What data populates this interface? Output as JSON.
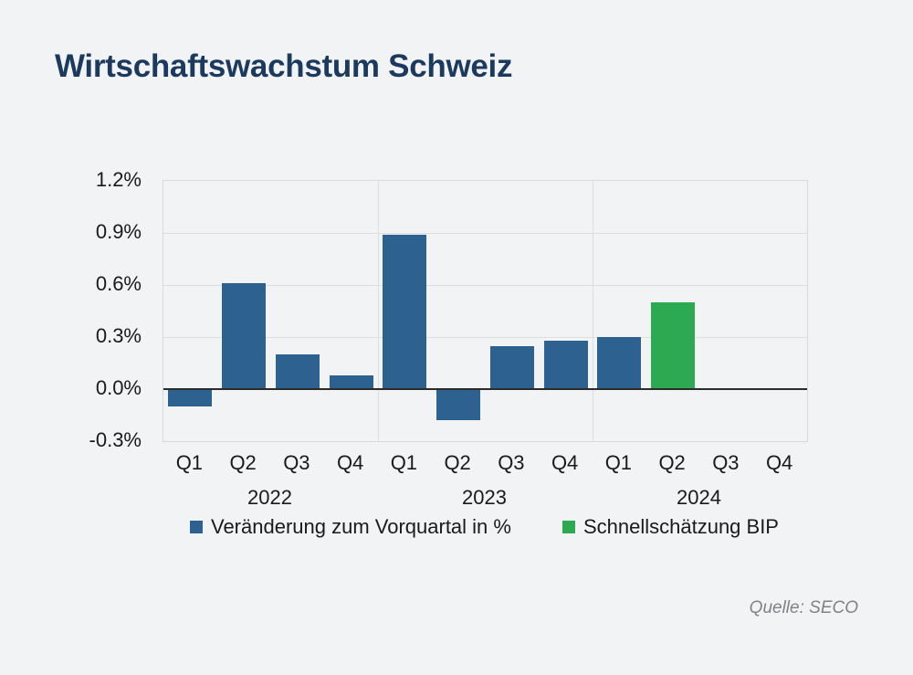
{
  "page": {
    "title": "Wirtschaftswachstum Schweiz",
    "source": "Quelle: SECO",
    "background_color": "#f2f3f5",
    "title_color": "#1b3a5e",
    "text_color": "#1a1a1a",
    "source_color": "#808285"
  },
  "chart_data": {
    "type": "bar",
    "title": "Wirtschaftswachstum Schweiz",
    "xlabel": "",
    "ylabel": "",
    "ylim": [
      -0.3,
      1.2
    ],
    "grid": true,
    "legend_position": "bottom",
    "y_ticks": [
      {
        "value": 1.2,
        "label": "1.2%"
      },
      {
        "value": 0.9,
        "label": "0.9%"
      },
      {
        "value": 0.6,
        "label": "0.6%"
      },
      {
        "value": 0.3,
        "label": "0.3%"
      },
      {
        "value": 0.0,
        "label": "0.0%"
      },
      {
        "value": -0.3,
        "label": "-0.3%"
      }
    ],
    "categories": [
      "Q1",
      "Q2",
      "Q3",
      "Q4",
      "Q1",
      "Q2",
      "Q3",
      "Q4",
      "Q1",
      "Q2",
      "Q3",
      "Q4"
    ],
    "year_groups": [
      {
        "label": "2022",
        "span": [
          0,
          3
        ]
      },
      {
        "label": "2023",
        "span": [
          4,
          7
        ]
      },
      {
        "label": "2024",
        "span": [
          8,
          11
        ]
      }
    ],
    "group_separator_indices": [
      4,
      8
    ],
    "series": [
      {
        "name": "Veränderung zum Vorquartal in %",
        "color": "#2d6190",
        "values": [
          -0.1,
          0.61,
          0.2,
          0.08,
          0.89,
          -0.18,
          0.25,
          0.28,
          0.3,
          null,
          null,
          null
        ]
      },
      {
        "name": "Schnellschätzung BIP",
        "color": "#2ca951",
        "values": [
          null,
          null,
          null,
          null,
          null,
          null,
          null,
          null,
          null,
          0.5,
          null,
          null
        ]
      }
    ]
  }
}
